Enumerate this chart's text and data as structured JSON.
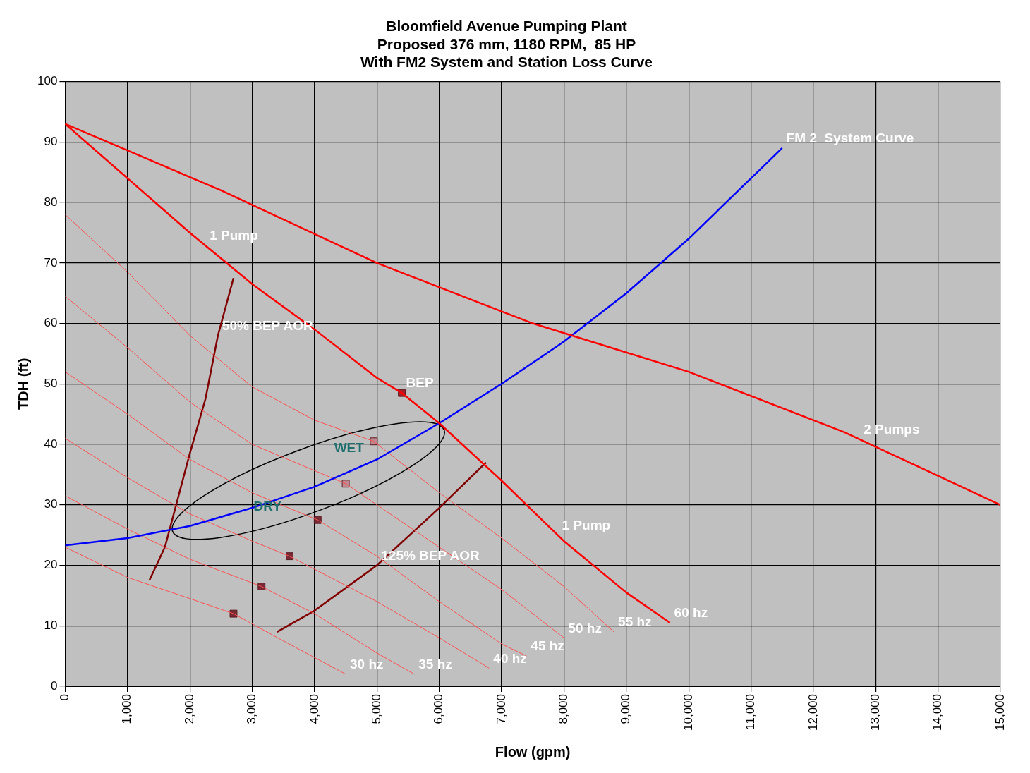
{
  "chart_data": {
    "type": "line",
    "title": "Bloomfield Avenue Pumping Plant",
    "subtitle": "Proposed 376 mm, 1180 RPM,  85 HP\nWith FM2 System and Station Loss Curve",
    "xlabel": "Flow (gpm)",
    "ylabel": "TDH (ft)",
    "xlim": [
      0,
      15000
    ],
    "xticks": [
      0,
      {
        "value": 1000,
        "label": "1,000"
      },
      {
        "value": 2000,
        "label": "2,000"
      },
      {
        "value": 3000,
        "label": "3,000"
      },
      {
        "value": 4000,
        "label": "4,000"
      },
      {
        "value": 5000,
        "label": "5,000"
      },
      {
        "value": 6000,
        "label": "6,000"
      },
      {
        "value": 7000,
        "label": "7,000"
      },
      {
        "value": 8000,
        "label": "8,000"
      },
      {
        "value": 9000,
        "label": "9,000"
      },
      {
        "value": 10000,
        "label": "10,000"
      },
      {
        "value": 11000,
        "label": "11,000"
      },
      {
        "value": 12000,
        "label": "12,000"
      },
      {
        "value": 13000,
        "label": "13,000"
      },
      {
        "value": 14000,
        "label": "14,000"
      },
      {
        "value": 15000,
        "label": "15,000"
      }
    ],
    "ylim": [
      0,
      100
    ],
    "yticks": [
      0,
      10,
      20,
      30,
      40,
      50,
      60,
      70,
      80,
      90,
      100
    ],
    "grid": true,
    "legend": false,
    "marker": "none",
    "series": [
      {
        "color": "#ff0000",
        "x": [
          0,
          1000,
          2000,
          3000,
          4000,
          5000,
          5400,
          6000,
          7000,
          8000,
          9000,
          9700
        ],
        "values": [
          93,
          84,
          75,
          66.5,
          59,
          51,
          48.5,
          43.5,
          34,
          24,
          15.5,
          10.5
        ]
      },
      {
        "color": "#ff0000",
        "x": [
          0,
          2500,
          5000,
          7500,
          10000,
          12500,
          15000
        ],
        "values": [
          93,
          82,
          70,
          60,
          52,
          42,
          30
        ]
      },
      {
        "color": "#0000ff",
        "x": [
          0,
          1000,
          2000,
          3000,
          4000,
          5000,
          6000,
          7000,
          8000,
          9000,
          10000,
          11000,
          11500
        ],
        "values": [
          23.3,
          24.5,
          26.5,
          29.5,
          33,
          37.5,
          43.5,
          50,
          57,
          65,
          74,
          84,
          89
        ]
      },
      {
        "color": "#ff5050",
        "x": [
          0,
          1000,
          2000,
          2700,
          3500,
          4500
        ],
        "values": [
          23,
          18,
          14.5,
          12,
          7.5,
          2
        ]
      },
      {
        "color": "#ff5050",
        "x": [
          0,
          1000,
          2000,
          3150,
          4000,
          5000,
          5600
        ],
        "values": [
          31.5,
          26,
          21,
          16.5,
          12,
          5.5,
          2
        ]
      },
      {
        "color": "#ff5050",
        "x": [
          0,
          1000,
          2000,
          3000,
          3600,
          5000,
          6000,
          6800
        ],
        "values": [
          41,
          34.5,
          28.5,
          24,
          21.5,
          14,
          8,
          3
        ]
      },
      {
        "color": "#ff5050",
        "x": [
          0,
          1000,
          2000,
          3000,
          4050,
          5000,
          6000,
          7000,
          7400
        ],
        "values": [
          52,
          45,
          37.5,
          32,
          27.5,
          21.5,
          14,
          7,
          5
        ]
      },
      {
        "color": "#ff5050",
        "x": [
          0,
          1000,
          2000,
          3000,
          4500,
          6000,
          7000,
          8000
        ],
        "values": [
          64.5,
          56,
          47,
          40,
          33.5,
          23,
          16,
          8
        ]
      },
      {
        "color": "#ff5050",
        "x": [
          0,
          1000,
          2000,
          3000,
          4000,
          4950,
          6000,
          7000,
          8000,
          8800
        ],
        "values": [
          78,
          68.5,
          58,
          49.5,
          44,
          40.5,
          32,
          24.5,
          16.5,
          9
        ]
      },
      {
        "color": "#800000",
        "x": [
          1350,
          1600,
          2000,
          2250,
          2450,
          2700
        ],
        "values": [
          17.5,
          23,
          38.5,
          47.5,
          58,
          67.5
        ]
      },
      {
        "color": "#800000",
        "x": [
          3400,
          4000,
          5000,
          6000,
          6750
        ],
        "values": [
          9,
          12.5,
          20,
          29.5,
          37
        ]
      },
      {
        "type": "scatter",
        "marker": "square",
        "colors": [
          "#7a2a35",
          "#7a2a35",
          "#7a2a35",
          "#7a2a35",
          "#c08890",
          "#c08890",
          "#a0202a"
        ],
        "x": [
          2700,
          3150,
          3600,
          4050,
          4500,
          4950,
          5400
        ],
        "values": [
          12,
          16.5,
          21.5,
          27.5,
          33.5,
          40.5,
          48.5
        ]
      }
    ],
    "annotations": [
      {
        "text": "FM 2  System Curve",
        "x": 11500,
        "y": 89
      },
      {
        "text": "1 Pump",
        "x": 2250,
        "y": 72.9
      },
      {
        "text": "50% BEP AOR",
        "x": 2450,
        "y": 58
      },
      {
        "text": "BEP",
        "x": 5400,
        "y": 48.5
      },
      {
        "text": "2 Pumps",
        "x": 12740,
        "y": 40.85
      },
      {
        "text": "125% BEP AOR",
        "x": 5000,
        "y": 20
      },
      {
        "text": "1 Pump",
        "x": 7900,
        "y": 25
      },
      {
        "text": "30 hz",
        "x": 4500,
        "y": 2
      },
      {
        "text": "35 hz",
        "x": 5600,
        "y": 2
      },
      {
        "text": "40 hz",
        "x": 6800,
        "y": 3
      },
      {
        "text": "45 hz",
        "x": 7400,
        "y": 5
      },
      {
        "text": "50 hz",
        "x": 8000,
        "y": 8
      },
      {
        "text": "55 hz",
        "x": 8800,
        "y": 9
      },
      {
        "text": "60 hz",
        "x": 9700,
        "y": 10.5
      },
      "DRY",
      "WET"
    ]
  }
}
